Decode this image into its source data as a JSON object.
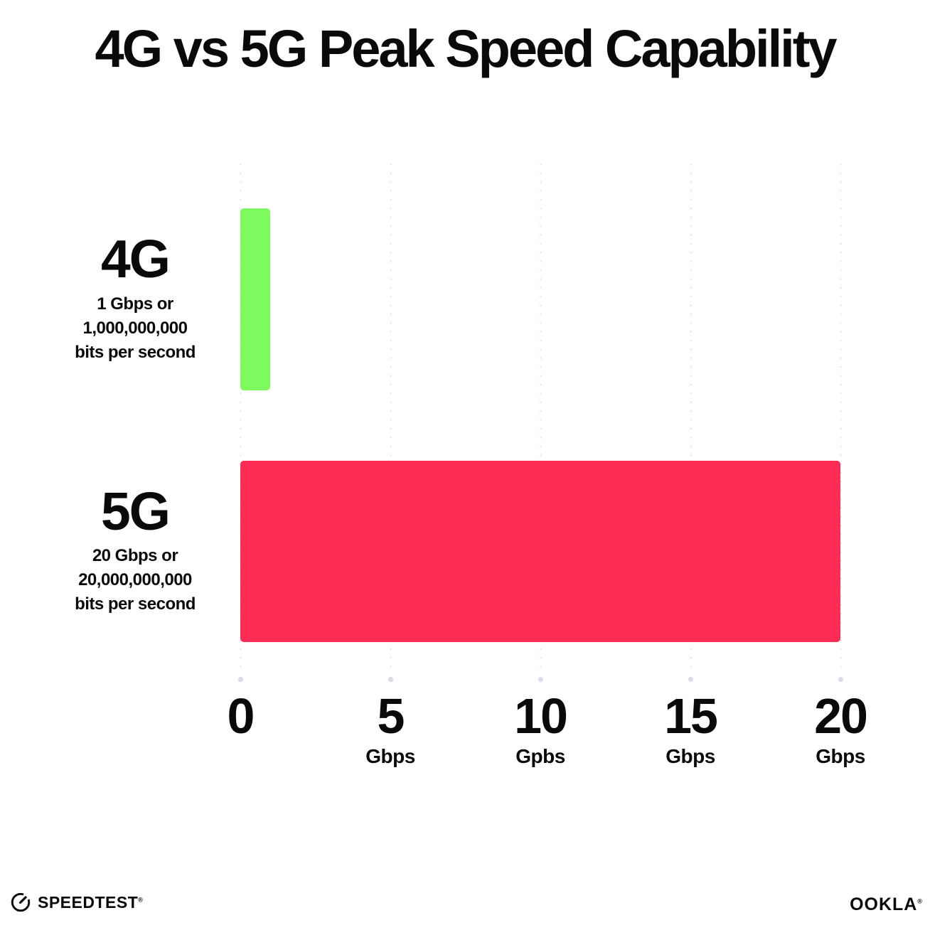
{
  "chart_data": {
    "type": "bar",
    "orientation": "horizontal",
    "title": "4G vs 5G Peak Speed Capability",
    "categories": [
      "4G",
      "5G"
    ],
    "values": [
      1,
      20
    ],
    "colors": [
      "#7DFA5E",
      "#FC2C55"
    ],
    "xlim": [
      0,
      20
    ],
    "grid": "dotted-vertical",
    "bars": [
      {
        "label": "4G",
        "value": 1,
        "sublines": [
          "1 Gbps or",
          "1,000,000,000",
          "bits per second"
        ]
      },
      {
        "label": "5G",
        "value": 20,
        "sublines": [
          "20 Gbps or",
          "20,000,000,000",
          "bits per second"
        ]
      }
    ],
    "x_axis": {
      "ticks": [
        {
          "value": 0,
          "label": "0",
          "unit": ""
        },
        {
          "value": 5,
          "label": "5",
          "unit": "Gbps"
        },
        {
          "value": 10,
          "label": "10",
          "unit": "Gpbs"
        },
        {
          "value": 15,
          "label": "15",
          "unit": "Gbps"
        },
        {
          "value": 20,
          "label": "20",
          "unit": "Gbps"
        }
      ]
    }
  },
  "footer": {
    "speedtest_label": "SPEEDTEST",
    "speedtest_trademark": "®",
    "ookla_label": "OOKLA",
    "ookla_trademark": "®"
  }
}
